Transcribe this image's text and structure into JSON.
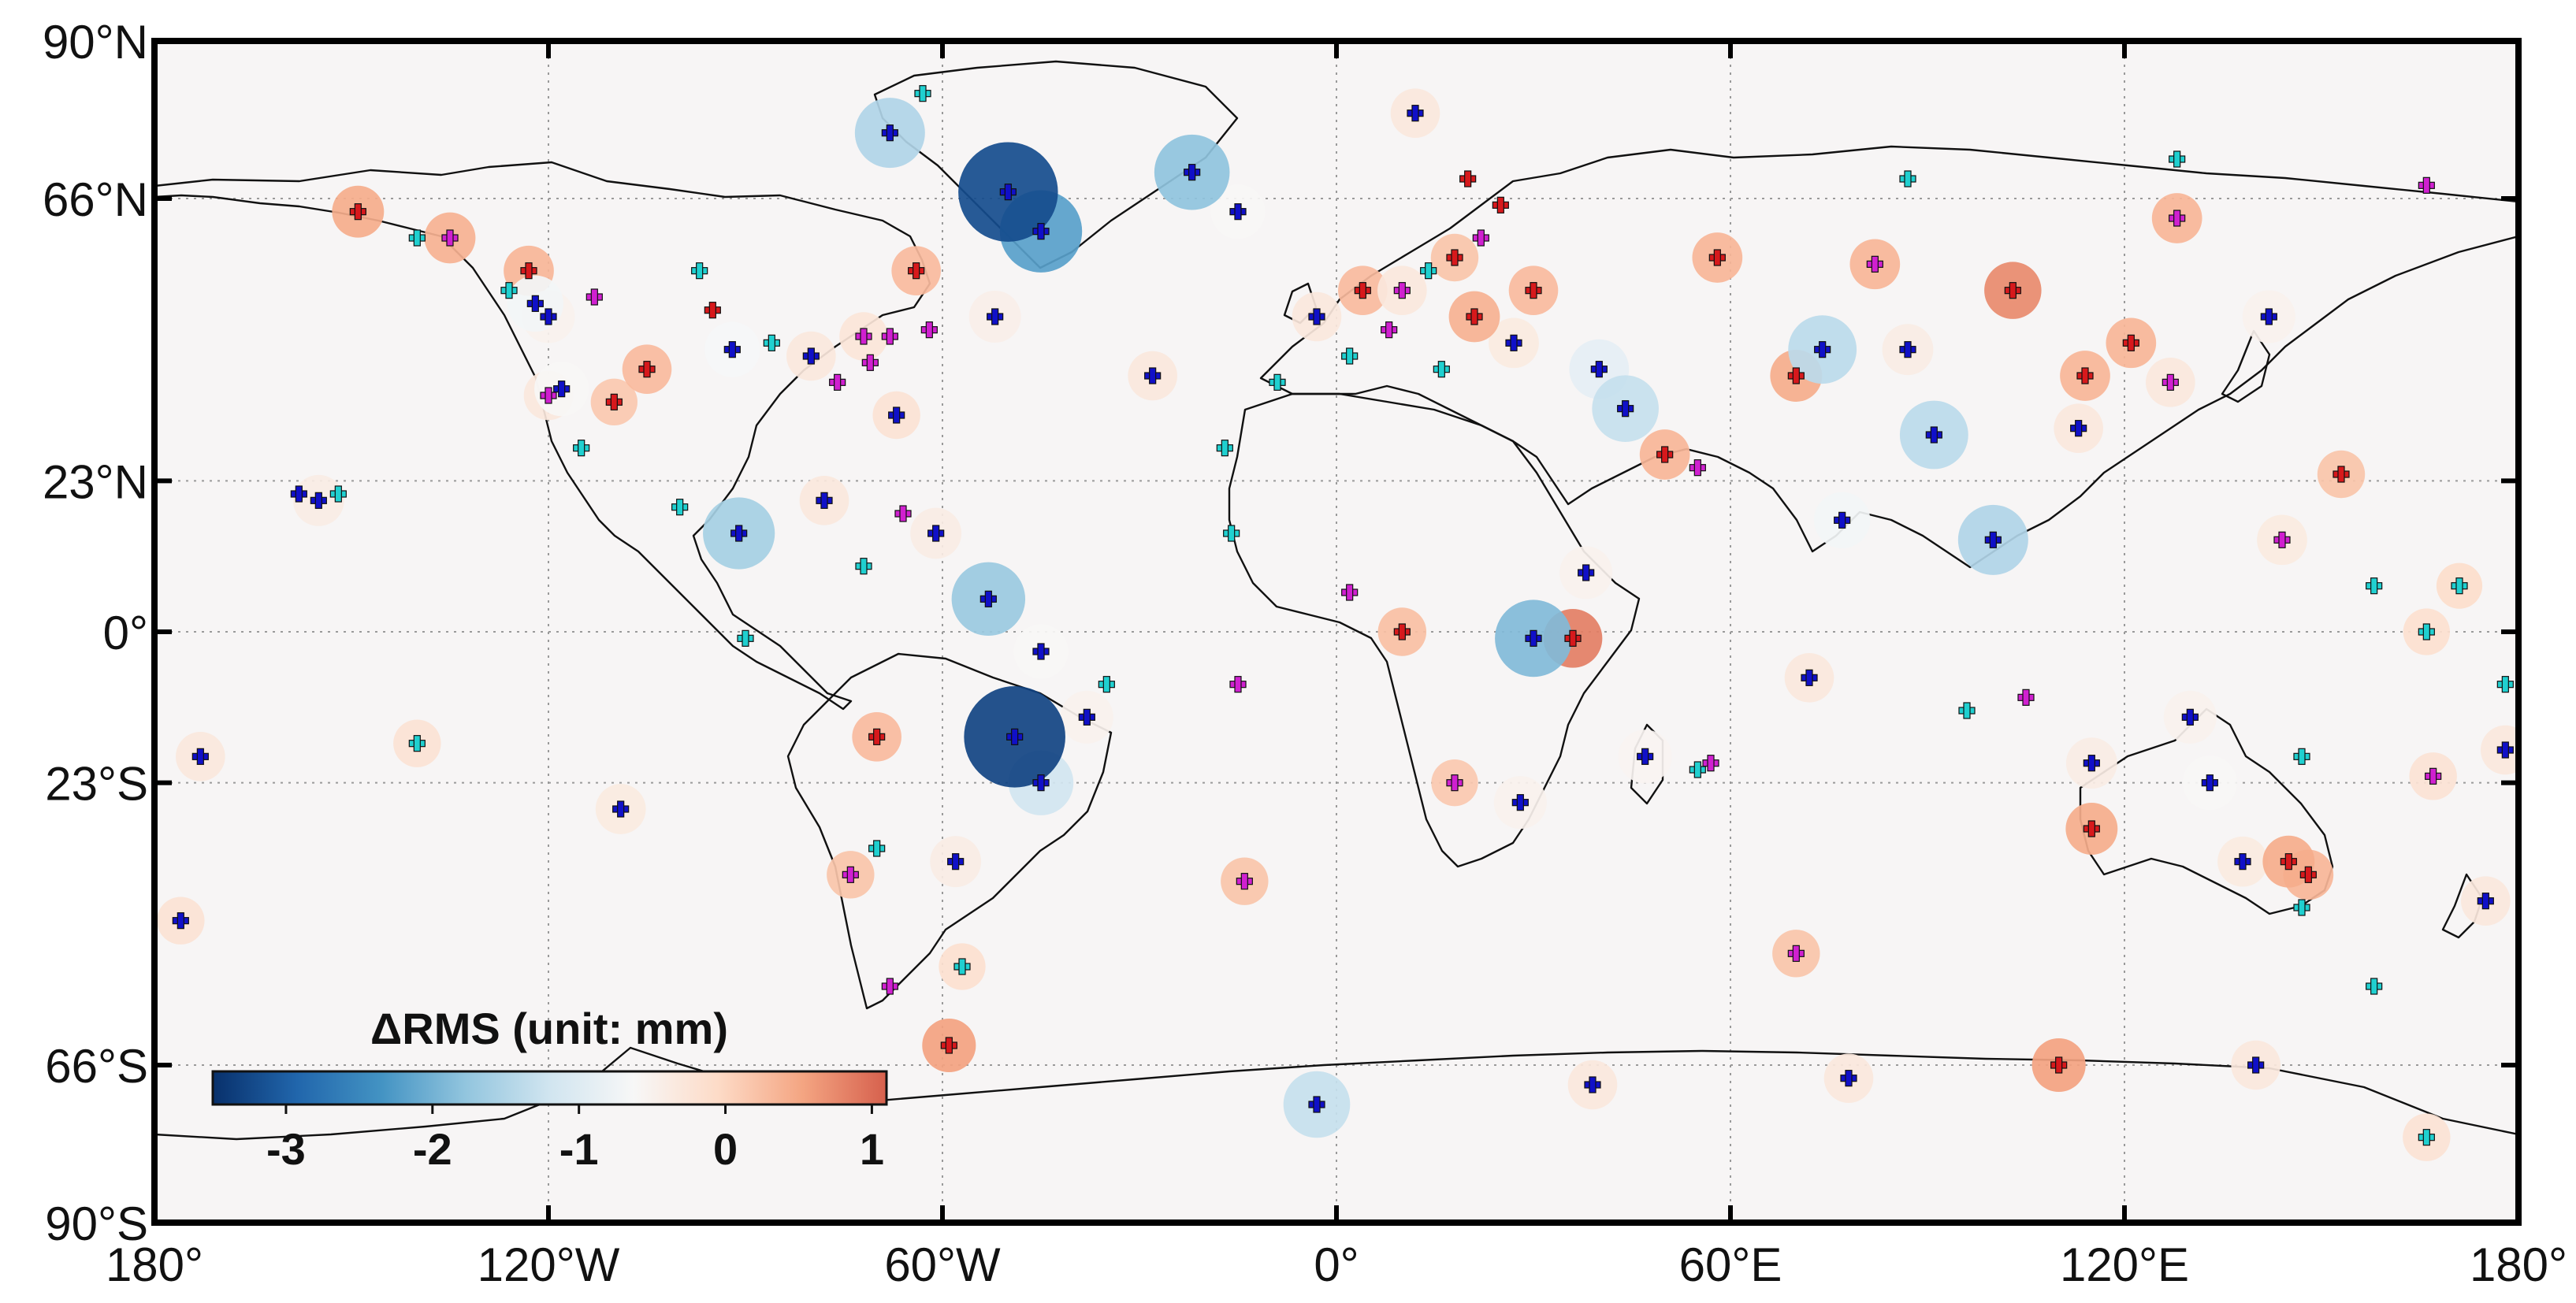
{
  "map": {
    "lat_labels": [
      {
        "lat": 90,
        "label": "90°N"
      },
      {
        "lat": 66,
        "label": "66°N"
      },
      {
        "lat": 23,
        "label": "23°N"
      },
      {
        "lat": 0,
        "label": "0°"
      },
      {
        "lat": -23,
        "label": "23°S"
      },
      {
        "lat": -66,
        "label": "66°S"
      },
      {
        "lat": -90,
        "label": "90°S"
      }
    ],
    "lon_labels": [
      {
        "lon": -180,
        "label": "180°"
      },
      {
        "lon": -120,
        "label": "120°W"
      },
      {
        "lon": -60,
        "label": "60°W"
      },
      {
        "lon": 0,
        "label": "0°"
      },
      {
        "lon": 60,
        "label": "60°E"
      },
      {
        "lon": 120,
        "label": "120°E"
      },
      {
        "lon": 180,
        "label": "180°"
      }
    ],
    "colors": {
      "ocean": "#f7f5f5",
      "coast": "#111111",
      "grid": "#9a9a9a",
      "marker_red": "#d7191c",
      "marker_blue": "#1010c8",
      "marker_magenta": "#d020d0",
      "marker_cyan": "#20d0d0"
    }
  },
  "colorbar": {
    "title": "ΔRMS (unit: mm)",
    "min": -3.5,
    "max": 1.1,
    "ticks": [
      {
        "value": -3,
        "label": "-3"
      },
      {
        "value": -2,
        "label": "-2"
      },
      {
        "value": -1,
        "label": "-1"
      },
      {
        "value": 0,
        "label": "0"
      },
      {
        "value": 1,
        "label": "1"
      }
    ],
    "stops": [
      "#08306b",
      "#2166ac",
      "#4393c3",
      "#92c5de",
      "#d1e5f0",
      "#f7f7f7",
      "#fddbc7",
      "#f4a582",
      "#d6604d"
    ]
  },
  "stations": [
    {
      "lon": -149,
      "lat": 64,
      "d": 0.45,
      "m": "red"
    },
    {
      "lon": -135,
      "lat": 60,
      "d": 0.4,
      "m": "magenta"
    },
    {
      "lon": -123,
      "lat": 55,
      "d": 0.35,
      "m": "red"
    },
    {
      "lon": -122,
      "lat": 50,
      "d": -0.7,
      "m": "blue"
    },
    {
      "lon": -120,
      "lat": 48,
      "d": -0.5,
      "m": "blue"
    },
    {
      "lon": -118,
      "lat": 37,
      "d": -0.6,
      "m": "blue"
    },
    {
      "lon": -120,
      "lat": 36,
      "d": -0.3,
      "m": "magenta"
    },
    {
      "lon": -105,
      "lat": 40,
      "d": 0.3,
      "m": "red"
    },
    {
      "lon": -110,
      "lat": 35,
      "d": 0.15,
      "m": "red"
    },
    {
      "lon": -92,
      "lat": 43,
      "d": -0.65,
      "m": "blue"
    },
    {
      "lon": -80,
      "lat": 42,
      "d": -0.3,
      "m": "blue"
    },
    {
      "lon": -72,
      "lat": 45,
      "d": -0.25,
      "m": "magenta"
    },
    {
      "lon": -64,
      "lat": 55,
      "d": 0.3,
      "m": "red"
    },
    {
      "lon": -52,
      "lat": 48,
      "d": -0.45,
      "m": "blue"
    },
    {
      "lon": -68,
      "lat": 76,
      "d": -1.5,
      "m": "blue"
    },
    {
      "lon": -50,
      "lat": 67,
      "d": -3.2,
      "m": "blue"
    },
    {
      "lon": -45,
      "lat": 61,
      "d": -2.2,
      "m": "blue"
    },
    {
      "lon": -22,
      "lat": 70,
      "d": -1.8,
      "m": "blue"
    },
    {
      "lon": -15,
      "lat": 64,
      "d": -0.6,
      "m": "blue"
    },
    {
      "lon": 12,
      "lat": 79,
      "d": -0.3,
      "m": "blue"
    },
    {
      "lon": -155,
      "lat": 20,
      "d": -0.4,
      "m": "blue"
    },
    {
      "lon": -91,
      "lat": 15,
      "d": -1.6,
      "m": "blue"
    },
    {
      "lon": -78,
      "lat": 20,
      "d": -0.3,
      "m": "blue"
    },
    {
      "lon": -67,
      "lat": 33,
      "d": -0.2,
      "m": "blue"
    },
    {
      "lon": -61,
      "lat": 15,
      "d": -0.4,
      "m": "blue"
    },
    {
      "lon": -53,
      "lat": 5,
      "d": -1.7,
      "m": "blue"
    },
    {
      "lon": -45,
      "lat": -3,
      "d": -0.6,
      "m": "blue"
    },
    {
      "lon": -38,
      "lat": -13,
      "d": -0.5,
      "m": "blue"
    },
    {
      "lon": -49,
      "lat": -16,
      "d": -3.3,
      "m": "blue"
    },
    {
      "lon": -45,
      "lat": -23,
      "d": -1.2,
      "m": "blue"
    },
    {
      "lon": -70,
      "lat": -16,
      "d": 0.3,
      "m": "red"
    },
    {
      "lon": -58,
      "lat": -35,
      "d": -0.4,
      "m": "blue"
    },
    {
      "lon": -74,
      "lat": -37,
      "d": 0.2,
      "m": "magenta"
    },
    {
      "lon": -59,
      "lat": -63,
      "d": 0.55,
      "m": "red"
    },
    {
      "lon": -173,
      "lat": -19,
      "d": -0.3,
      "m": "blue"
    },
    {
      "lon": -140,
      "lat": -17,
      "d": -0.2,
      "m": "cyan"
    },
    {
      "lon": -109,
      "lat": -27,
      "d": -0.35,
      "m": "blue"
    },
    {
      "lon": -176,
      "lat": -44,
      "d": -0.2,
      "m": "blue"
    },
    {
      "lon": -28,
      "lat": 39,
      "d": -0.3,
      "m": "blue"
    },
    {
      "lon": -3,
      "lat": 48,
      "d": -0.3,
      "m": "blue"
    },
    {
      "lon": 4,
      "lat": 52,
      "d": 0.3,
      "m": "red"
    },
    {
      "lon": 10,
      "lat": 52,
      "d": -0.3,
      "m": "magenta"
    },
    {
      "lon": 18,
      "lat": 57,
      "d": 0.2,
      "m": "red"
    },
    {
      "lon": 21,
      "lat": 48,
      "d": 0.4,
      "m": "red"
    },
    {
      "lon": 30,
      "lat": 52,
      "d": 0.3,
      "m": "red"
    },
    {
      "lon": 27,
      "lat": 44,
      "d": -0.35,
      "m": "blue"
    },
    {
      "lon": 40,
      "lat": 40,
      "d": -0.9,
      "m": "blue"
    },
    {
      "lon": 44,
      "lat": 34,
      "d": -1.3,
      "m": "blue"
    },
    {
      "lon": 50,
      "lat": 27,
      "d": 0.35,
      "m": "red"
    },
    {
      "lon": 58,
      "lat": 57,
      "d": 0.35,
      "m": "red"
    },
    {
      "lon": 74,
      "lat": 43,
      "d": -1.4,
      "m": "blue"
    },
    {
      "lon": 70,
      "lat": 39,
      "d": 0.45,
      "m": "red"
    },
    {
      "lon": 87,
      "lat": 43,
      "d": -0.4,
      "m": "blue"
    },
    {
      "lon": 82,
      "lat": 56,
      "d": 0.35,
      "m": "magenta"
    },
    {
      "lon": 103,
      "lat": 52,
      "d": 0.75,
      "m": "red"
    },
    {
      "lon": 91,
      "lat": 30,
      "d": -1.4,
      "m": "blue"
    },
    {
      "lon": 77,
      "lat": 17,
      "d": -0.7,
      "m": "blue"
    },
    {
      "lon": 100,
      "lat": 14,
      "d": -1.5,
      "m": "blue"
    },
    {
      "lon": 114,
      "lat": 39,
      "d": 0.35,
      "m": "red"
    },
    {
      "lon": 121,
      "lat": 44,
      "d": 0.35,
      "m": "red"
    },
    {
      "lon": 113,
      "lat": 31,
      "d": -0.3,
      "m": "blue"
    },
    {
      "lon": 127,
      "lat": 38,
      "d": -0.3,
      "m": "magenta"
    },
    {
      "lon": 142,
      "lat": 48,
      "d": -0.5,
      "m": "blue"
    },
    {
      "lon": 128,
      "lat": 63,
      "d": 0.35,
      "m": "magenta"
    },
    {
      "lon": 153,
      "lat": 24,
      "d": 0.2,
      "m": "red"
    },
    {
      "lon": 144,
      "lat": 14,
      "d": -0.35,
      "m": "magenta"
    },
    {
      "lon": 36,
      "lat": -1,
      "d": 0.85,
      "m": "red"
    },
    {
      "lon": 30,
      "lat": -1,
      "d": -1.9,
      "m": "blue"
    },
    {
      "lon": 38,
      "lat": 9,
      "d": -0.5,
      "m": "blue"
    },
    {
      "lon": 10,
      "lat": 0,
      "d": 0.25,
      "m": "red"
    },
    {
      "lon": 18,
      "lat": -23,
      "d": 0.15,
      "m": "magenta"
    },
    {
      "lon": 28,
      "lat": -26,
      "d": -0.5,
      "m": "blue"
    },
    {
      "lon": 47,
      "lat": -19,
      "d": -0.55,
      "m": "blue"
    },
    {
      "lon": 72,
      "lat": -7,
      "d": -0.3,
      "m": "blue"
    },
    {
      "lon": -57,
      "lat": -51,
      "d": -0.15,
      "m": "cyan"
    },
    {
      "lon": 115,
      "lat": -30,
      "d": 0.45,
      "m": "red"
    },
    {
      "lon": 115,
      "lat": -20,
      "d": -0.4,
      "m": "blue"
    },
    {
      "lon": 130,
      "lat": -13,
      "d": -0.5,
      "m": "blue"
    },
    {
      "lon": 133,
      "lat": -23,
      "d": -0.6,
      "m": "blue"
    },
    {
      "lon": 138,
      "lat": -35,
      "d": -0.35,
      "m": "blue"
    },
    {
      "lon": 145,
      "lat": -35,
      "d": 0.45,
      "m": "red"
    },
    {
      "lon": 148,
      "lat": -37,
      "d": 0.35,
      "m": "red"
    },
    {
      "lon": 175,
      "lat": -41,
      "d": -0.3,
      "m": "blue"
    },
    {
      "lon": 178,
      "lat": -18,
      "d": -0.3,
      "m": "blue"
    },
    {
      "lon": -3,
      "lat": -72,
      "d": -1.3,
      "m": "blue"
    },
    {
      "lon": 39,
      "lat": -69,
      "d": -0.3,
      "m": "blue"
    },
    {
      "lon": 78,
      "lat": -68,
      "d": -0.3,
      "m": "blue"
    },
    {
      "lon": 110,
      "lat": -66,
      "d": 0.55,
      "m": "red"
    },
    {
      "lon": 140,
      "lat": -66,
      "d": -0.3,
      "m": "blue"
    },
    {
      "lon": 166,
      "lat": -77,
      "d": -0.2,
      "m": "cyan"
    },
    {
      "lon": -14,
      "lat": -38,
      "d": 0.2,
      "m": "magenta"
    },
    {
      "lon": 70,
      "lat": -49,
      "d": 0.2,
      "m": "magenta"
    },
    {
      "lon": 166,
      "lat": 0,
      "d": -0.15,
      "m": "cyan"
    },
    {
      "lon": 171,
      "lat": 7,
      "d": -0.1,
      "m": "cyan"
    },
    {
      "lon": 167,
      "lat": -22,
      "d": -0.2,
      "m": "magenta"
    }
  ],
  "points_only": [
    {
      "lon": -140,
      "lat": 60,
      "m": "cyan"
    },
    {
      "lon": -126,
      "lat": 52,
      "m": "cyan"
    },
    {
      "lon": -113,
      "lat": 51,
      "m": "magenta"
    },
    {
      "lon": -97,
      "lat": 55,
      "m": "cyan"
    },
    {
      "lon": -95,
      "lat": 49,
      "m": "red"
    },
    {
      "lon": -86,
      "lat": 44,
      "m": "cyan"
    },
    {
      "lon": -76,
      "lat": 38,
      "m": "magenta"
    },
    {
      "lon": -71,
      "lat": 41,
      "m": "magenta"
    },
    {
      "lon": -68,
      "lat": 45,
      "m": "magenta"
    },
    {
      "lon": -62,
      "lat": 46,
      "m": "magenta"
    },
    {
      "lon": -115,
      "lat": 28,
      "m": "cyan"
    },
    {
      "lon": -100,
      "lat": 19,
      "m": "cyan"
    },
    {
      "lon": -66,
      "lat": 18,
      "m": "magenta"
    },
    {
      "lon": -72,
      "lat": 10,
      "m": "cyan"
    },
    {
      "lon": -152,
      "lat": 21,
      "m": "cyan"
    },
    {
      "lon": -158,
      "lat": 21,
      "m": "blue"
    },
    {
      "lon": -90,
      "lat": -1,
      "m": "cyan"
    },
    {
      "lon": -35,
      "lat": -8,
      "m": "cyan"
    },
    {
      "lon": -70,
      "lat": -33,
      "m": "cyan"
    },
    {
      "lon": -68,
      "lat": -54,
      "m": "magenta"
    },
    {
      "lon": -9,
      "lat": 38,
      "m": "cyan"
    },
    {
      "lon": 2,
      "lat": 42,
      "m": "cyan"
    },
    {
      "lon": 8,
      "lat": 46,
      "m": "magenta"
    },
    {
      "lon": 16,
      "lat": 40,
      "m": "cyan"
    },
    {
      "lon": 14,
      "lat": 55,
      "m": "cyan"
    },
    {
      "lon": 22,
      "lat": 60,
      "m": "magenta"
    },
    {
      "lon": 25,
      "lat": 65,
      "m": "red"
    },
    {
      "lon": -17,
      "lat": 28,
      "m": "cyan"
    },
    {
      "lon": -16,
      "lat": 15,
      "m": "cyan"
    },
    {
      "lon": 2,
      "lat": 6,
      "m": "magenta"
    },
    {
      "lon": -15,
      "lat": -8,
      "m": "magenta"
    },
    {
      "lon": 55,
      "lat": -21,
      "m": "cyan"
    },
    {
      "lon": 57,
      "lat": -20,
      "m": "magenta"
    },
    {
      "lon": 55,
      "lat": 25,
      "m": "magenta"
    },
    {
      "lon": 87,
      "lat": 69,
      "m": "cyan"
    },
    {
      "lon": 128,
      "lat": 72,
      "m": "cyan"
    },
    {
      "lon": 166,
      "lat": 68,
      "m": "magenta"
    },
    {
      "lon": 105,
      "lat": -10,
      "m": "magenta"
    },
    {
      "lon": 96,
      "lat": -12,
      "m": "cyan"
    },
    {
      "lon": 147,
      "lat": -19,
      "m": "cyan"
    },
    {
      "lon": 147,
      "lat": -42,
      "m": "cyan"
    },
    {
      "lon": 158,
      "lat": -54,
      "m": "cyan"
    },
    {
      "lon": 158,
      "lat": 7,
      "m": "cyan"
    },
    {
      "lon": 178,
      "lat": -8,
      "m": "cyan"
    },
    {
      "lon": -63,
      "lat": 82,
      "m": "cyan"
    },
    {
      "lon": 20,
      "lat": 69,
      "m": "red"
    }
  ]
}
